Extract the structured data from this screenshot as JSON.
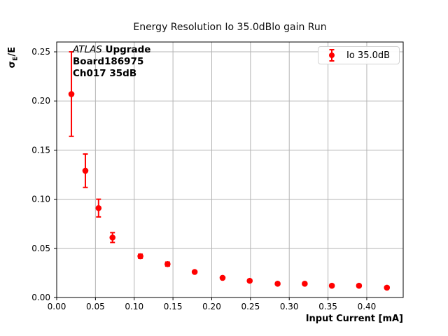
{
  "chart_data": {
    "type": "scatter",
    "title": "Energy Resolution Io 35.0dBlo gain Run",
    "xlabel": "Input Current [mA]",
    "ylabel": "σ_E/E",
    "ylabel_parts": {
      "sigma": "σ",
      "sub": "E",
      "rest": "/E"
    },
    "xlim": [
      0,
      0.447
    ],
    "ylim": [
      0,
      0.26
    ],
    "xticks": [
      0,
      0.05,
      0.1,
      0.15,
      0.2,
      0.25,
      0.3,
      0.35,
      0.4
    ],
    "xtick_labels": [
      "0.00",
      "0.05",
      "0.10",
      "0.15",
      "0.20",
      "0.25",
      "0.30",
      "0.35",
      "0.40"
    ],
    "yticks": [
      0,
      0.05,
      0.1,
      0.15,
      0.2,
      0.25
    ],
    "ytick_labels": [
      "0.00",
      "0.05",
      "0.10",
      "0.15",
      "0.20",
      "0.25"
    ],
    "grid": true,
    "legend": {
      "position": "upper right",
      "entries": [
        "Io 35.0dB"
      ]
    },
    "annotation": {
      "line1_italic": "ATLAS",
      "line1_bold": " Upgrade",
      "line2": "Board186975",
      "line3": "Ch017 35dB"
    },
    "series": [
      {
        "name": "Io 35.0dB",
        "marker": "o",
        "color": "#ff0000",
        "x": [
          0.019,
          0.037,
          0.054,
          0.072,
          0.108,
          0.143,
          0.178,
          0.214,
          0.249,
          0.285,
          0.32,
          0.355,
          0.39,
          0.426
        ],
        "y": [
          0.207,
          0.129,
          0.091,
          0.061,
          0.042,
          0.034,
          0.026,
          0.02,
          0.017,
          0.014,
          0.014,
          0.012,
          0.012,
          0.01
        ],
        "yerr": [
          0.043,
          0.017,
          0.009,
          0.005,
          0.002,
          0.002,
          0.001,
          0.001,
          0.001,
          0.001,
          0.001,
          0.001,
          0.001,
          0.001
        ]
      }
    ],
    "colors": {
      "series": "#ff0000",
      "grid": "#b4b4b4",
      "axis": "#000000",
      "legend_border": "#d2d2d2",
      "background": "#ffffff"
    }
  }
}
